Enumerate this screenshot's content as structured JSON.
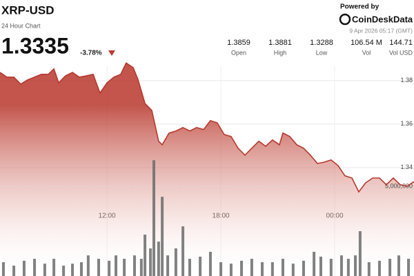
{
  "header": {
    "title": "XRP-USD",
    "subtitle": "24 Hour Chart",
    "price": "1.3335",
    "change": "-3.78%",
    "powered": "Powered by",
    "brand": "CoinDeskData",
    "timestamp": "9 Apr 2026 05:17 (GMT)"
  },
  "stats": [
    {
      "value": "1.3859",
      "label": "Open"
    },
    {
      "value": "1.3881",
      "label": "High"
    },
    {
      "value": "1.3288",
      "label": "Low"
    },
    {
      "value": "106.54 M",
      "label": "Vol"
    },
    {
      "value": "144.71",
      "label": "Vol USD"
    }
  ],
  "chart_data": [
    {
      "type": "area",
      "color": "#b8372c",
      "grid": true,
      "x": [
        6.36,
        6.72,
        7.09,
        7.45,
        7.81,
        8.18,
        8.54,
        8.91,
        9.2,
        9.45,
        9.81,
        10.18,
        10.54,
        10.91,
        11.27,
        11.63,
        12.0,
        12.36,
        12.72,
        13.01,
        13.38,
        13.63,
        14.0,
        14.36,
        14.72,
        14.91,
        15.27,
        15.63,
        16.0,
        16.36,
        16.72,
        17.09,
        17.45,
        17.81,
        18.18,
        18.54,
        18.91,
        19.27,
        19.63,
        20.0,
        20.36,
        20.72,
        21.09,
        21.27,
        21.63,
        22.0,
        22.36,
        22.72,
        23.09,
        23.45,
        23.81,
        24.18,
        24.54,
        24.91,
        25.27,
        25.63,
        26.0,
        26.36,
        26.72,
        27.09,
        27.45,
        27.81,
        28.18
      ],
      "values": [
        1.3838,
        1.3816,
        1.3816,
        1.3784,
        1.3803,
        1.3816,
        1.3829,
        1.3829,
        1.3854,
        1.379,
        1.3822,
        1.3838,
        1.3816,
        1.3822,
        1.3829,
        1.3743,
        1.379,
        1.3816,
        1.3829,
        1.3881,
        1.386,
        1.3806,
        1.3695,
        1.3663,
        1.3521,
        1.3505,
        1.3559,
        1.3568,
        1.3584,
        1.3568,
        1.3584,
        1.3575,
        1.3616,
        1.3606,
        1.3552,
        1.3543,
        1.3489,
        1.3457,
        1.3489,
        1.3521,
        1.3498,
        1.3527,
        1.3505,
        1.3559,
        1.3543,
        1.3505,
        1.3489,
        1.3457,
        1.3419,
        1.3425,
        1.3435,
        1.3409,
        1.3362,
        1.3352,
        1.3288,
        1.333,
        1.3352,
        1.3352,
        1.3321,
        1.3352,
        1.3321,
        1.3314,
        1.3335
      ],
      "xlim": [
        6.36,
        28.18
      ],
      "xticks": [
        {
          "value": 12,
          "label": "12:00"
        },
        {
          "value": 18,
          "label": "18:00"
        },
        {
          "value": 24,
          "label": "00:00"
        }
      ],
      "ylim": [
        1.2901,
        1.4171
      ],
      "yticks": [
        1.34,
        1.36,
        1.38
      ]
    },
    {
      "type": "bar",
      "color": "#6b6b6b",
      "x": [
        6.54,
        7.09,
        7.63,
        8.18,
        8.72,
        9.2,
        9.71,
        10.18,
        10.65,
        11.01,
        11.56,
        12.11,
        12.47,
        12.91,
        13.45,
        13.81,
        14.0,
        14.29,
        14.47,
        14.72,
        14.91,
        15.2,
        15.63,
        16.0,
        16.36,
        16.91,
        17.45,
        18.0,
        18.54,
        19.09,
        19.63,
        20.18,
        20.72,
        21.27,
        21.81,
        22.36,
        22.91,
        23.27,
        23.81,
        24.36,
        24.72,
        25.09,
        25.34,
        25.81,
        26.36,
        26.91,
        27.38,
        27.89
      ],
      "values": [
        770000,
        580000,
        850000,
        960000,
        690000,
        960000,
        580000,
        690000,
        770000,
        1150000,
        960000,
        850000,
        1150000,
        960000,
        1150000,
        960000,
        2310000,
        1540000,
        6460000,
        1920000,
        4420000,
        1150000,
        1540000,
        2770000,
        960000,
        1080000,
        1350000,
        770000,
        690000,
        850000,
        960000,
        770000,
        770000,
        960000,
        690000,
        850000,
        1350000,
        1080000,
        960000,
        1150000,
        960000,
        1150000,
        2500000,
        770000,
        850000,
        960000,
        1150000,
        960000
      ],
      "xlim": [
        6.36,
        28.18
      ],
      "ylim": [
        0,
        15400000
      ],
      "yticks": [
        {
          "value": 5000000,
          "label": "5,000,000"
        }
      ]
    }
  ]
}
